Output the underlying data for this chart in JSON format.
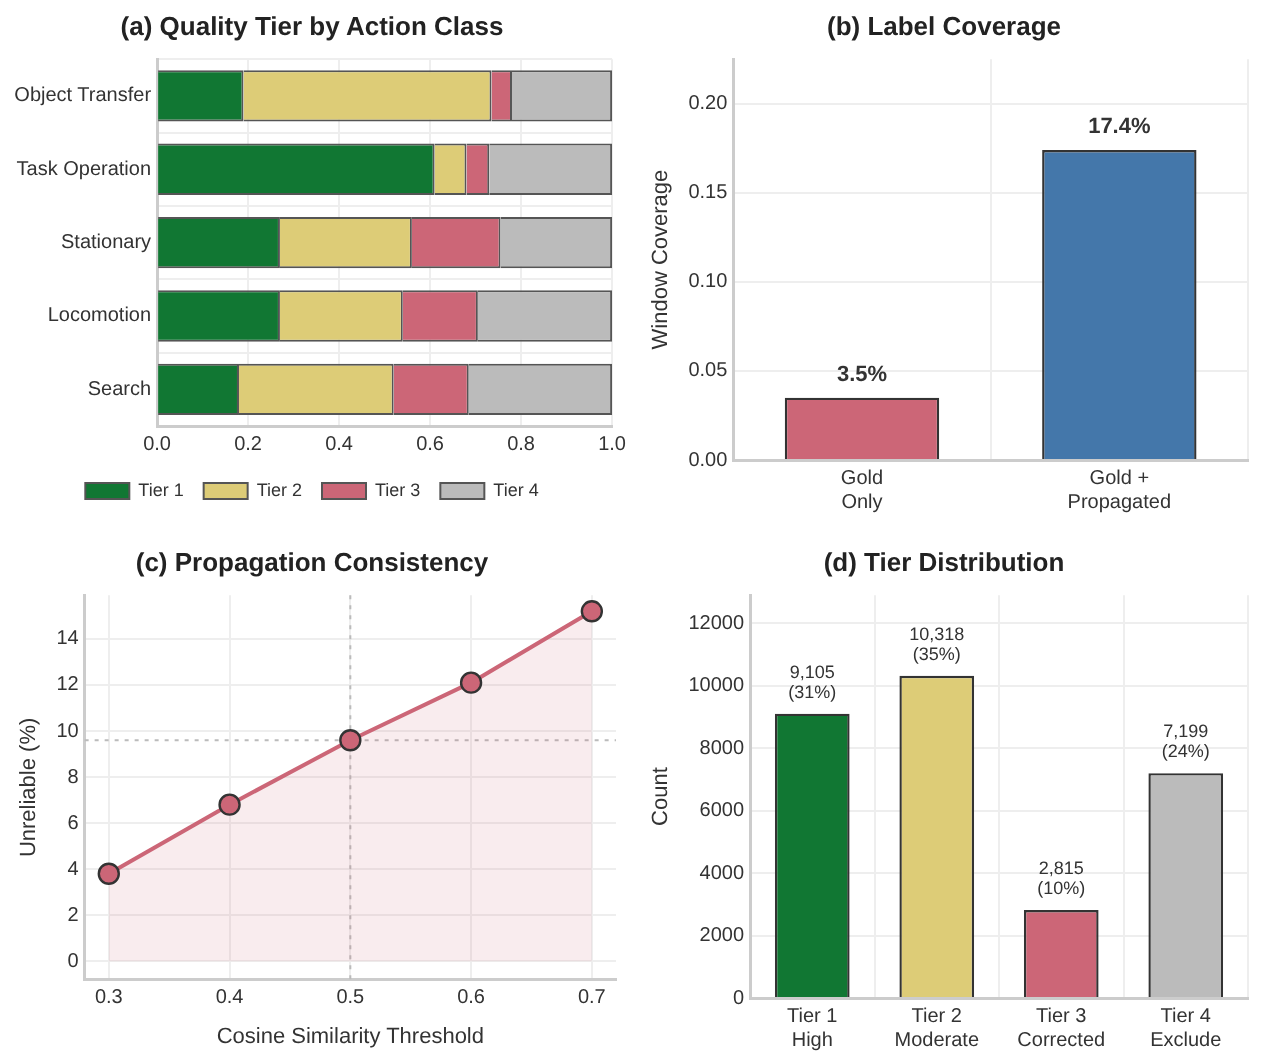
{
  "chart_data": [
    {
      "type": "bar",
      "title": "(a) Quality Tier by Action Class",
      "orientation": "horizontal",
      "stacked": true,
      "categories": [
        "Object Transfer",
        "Task Operation",
        "Stationary",
        "Locomotion",
        "Search"
      ],
      "series": [
        {
          "name": "Tier 1",
          "color": "#117733",
          "values": [
            0.19,
            0.61,
            0.27,
            0.27,
            0.18
          ]
        },
        {
          "name": "Tier 2",
          "color": "#ddcc77",
          "values": [
            0.545,
            0.07,
            0.29,
            0.27,
            0.34
          ]
        },
        {
          "name": "Tier 3",
          "color": "#cc6677",
          "values": [
            0.045,
            0.05,
            0.195,
            0.165,
            0.165
          ]
        },
        {
          "name": "Tier 4",
          "color": "#bbbbbb",
          "values": [
            0.22,
            0.27,
            0.245,
            0.295,
            0.315
          ]
        }
      ],
      "xlim": [
        0,
        1
      ],
      "xticks": [
        {
          "value": 0,
          "label": "0.0"
        },
        {
          "value": 0.2,
          "label": "0.2"
        },
        {
          "value": 0.4,
          "label": "0.4"
        },
        {
          "value": 0.6,
          "label": "0.6"
        },
        {
          "value": 0.8,
          "label": "0.8"
        },
        {
          "value": 1,
          "label": "1.0"
        }
      ],
      "grid": true,
      "legend": "bottom"
    },
    {
      "type": "bar",
      "title": "(b) Label Coverage",
      "ylabel": "Window Coverage",
      "categories": [
        "Gold\nOnly",
        "Gold +\nPropagated"
      ],
      "values": [
        0.035,
        0.174
      ],
      "colors": [
        "#cc6677",
        "#4477aa"
      ],
      "value_labels": [
        "3.5%",
        "17.4%"
      ],
      "ylim": [
        0,
        0.225
      ],
      "yticks": [
        {
          "value": 0,
          "label": "0.00"
        },
        {
          "value": 0.05,
          "label": "0.05"
        },
        {
          "value": 0.1,
          "label": "0.10"
        },
        {
          "value": 0.15,
          "label": "0.15"
        },
        {
          "value": 0.2,
          "label": "0.20"
        }
      ],
      "grid": true
    },
    {
      "type": "area",
      "title": "(c) Propagation Consistency",
      "xlabel": "Cosine Similarity Threshold",
      "ylabel": "Unreliable (%)",
      "x": [
        0.3,
        0.4,
        0.5,
        0.6,
        0.7
      ],
      "series": [
        {
          "color": "#cc6677",
          "values": [
            3.8,
            6.8,
            9.6,
            12.1,
            15.2
          ]
        }
      ],
      "xlim": [
        0.28,
        0.72
      ],
      "xticks": [
        0.3,
        0.4,
        0.5,
        0.6,
        0.7
      ],
      "ylim": [
        -0.8,
        15.9
      ],
      "yticks": [
        0,
        2,
        4,
        6,
        8,
        10,
        12,
        14
      ],
      "grid": true,
      "marker": "circle",
      "ref_lines": [
        {
          "axis": "x",
          "value": 0.5,
          "color": "#bbbbbb",
          "line_style": "dotted"
        },
        {
          "axis": "y",
          "value": 9.6,
          "color": "#bbbbbb",
          "line_style": "dotted"
        }
      ]
    },
    {
      "type": "bar",
      "title": "(d) Tier Distribution",
      "ylabel": "Count",
      "categories": [
        "Tier 1\nHigh",
        "Tier 2\nModerate",
        "Tier 3\nCorrected",
        "Tier 4\nExclude"
      ],
      "values": [
        9105,
        10318,
        2815,
        7199
      ],
      "colors": [
        "#117733",
        "#ddcc77",
        "#cc6677",
        "#bbbbbb"
      ],
      "value_labels": [
        "9,105\n(31%)",
        "10,318\n(35%)",
        "2,815\n(10%)",
        "7,199\n(24%)"
      ],
      "ylim": [
        0,
        12900
      ],
      "yticks": [
        0,
        2000,
        4000,
        6000,
        8000,
        10000,
        12000
      ],
      "grid": true
    }
  ]
}
